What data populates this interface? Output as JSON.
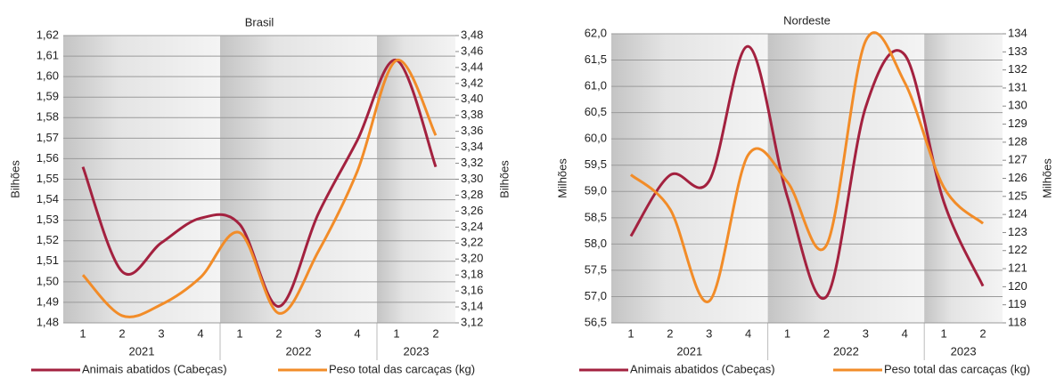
{
  "chart_data": [
    {
      "type": "line",
      "title": "Brasil",
      "categories": [
        "1",
        "2",
        "3",
        "4",
        "1",
        "2",
        "3",
        "4",
        "1",
        "2"
      ],
      "x_groups": [
        {
          "label": "2021",
          "count": 4
        },
        {
          "label": "2022",
          "count": 4
        },
        {
          "label": "2023",
          "count": 2
        }
      ],
      "y_label": "Bilhões",
      "y2_label": "Bilhões",
      "ylim": [
        1.48,
        1.62
      ],
      "yticks": [
        {
          "value": 1.48,
          "label": "1,48"
        },
        {
          "value": 1.49,
          "label": "1,49"
        },
        {
          "value": 1.5,
          "label": "1,50"
        },
        {
          "value": 1.51,
          "label": "1,51"
        },
        {
          "value": 1.52,
          "label": "1,52"
        },
        {
          "value": 1.53,
          "label": "1,53"
        },
        {
          "value": 1.54,
          "label": "1,54"
        },
        {
          "value": 1.55,
          "label": "1,55"
        },
        {
          "value": 1.56,
          "label": "1,56"
        },
        {
          "value": 1.57,
          "label": "1,57"
        },
        {
          "value": 1.58,
          "label": "1,58"
        },
        {
          "value": 1.59,
          "label": "1,59"
        },
        {
          "value": 1.6,
          "label": "1,60"
        },
        {
          "value": 1.61,
          "label": "1,61"
        },
        {
          "value": 1.62,
          "label": "1,62"
        }
      ],
      "y2lim": [
        3.12,
        3.48
      ],
      "y2ticks": [
        {
          "value": 3.12,
          "label": "3,12"
        },
        {
          "value": 3.14,
          "label": "3,14"
        },
        {
          "value": 3.16,
          "label": "3,16"
        },
        {
          "value": 3.18,
          "label": "3,18"
        },
        {
          "value": 3.2,
          "label": "3,20"
        },
        {
          "value": 3.22,
          "label": "3,22"
        },
        {
          "value": 3.24,
          "label": "3,24"
        },
        {
          "value": 3.26,
          "label": "3,26"
        },
        {
          "value": 3.28,
          "label": "3,28"
        },
        {
          "value": 3.3,
          "label": "3,30"
        },
        {
          "value": 3.32,
          "label": "3,32"
        },
        {
          "value": 3.34,
          "label": "3,34"
        },
        {
          "value": 3.36,
          "label": "3,36"
        },
        {
          "value": 3.38,
          "label": "3,38"
        },
        {
          "value": 3.4,
          "label": "3,40"
        },
        {
          "value": 3.42,
          "label": "3,42"
        },
        {
          "value": 3.44,
          "label": "3,44"
        },
        {
          "value": 3.46,
          "label": "3,46"
        },
        {
          "value": 3.48,
          "label": "3,48"
        }
      ],
      "grid": true,
      "series": [
        {
          "name": "Animais abatidos (Cabeças)",
          "color": "#a3213f",
          "values": [
            1.556,
            1.505,
            1.519,
            1.531,
            1.528,
            1.488,
            1.533,
            1.569,
            1.608,
            1.556
          ]
        },
        {
          "name": "Peso total das carcaças (kg)",
          "color": "#f28c28",
          "axis": "y2",
          "values": [
            3.18,
            3.129,
            3.143,
            3.177,
            3.233,
            3.132,
            3.209,
            3.31,
            3.449,
            3.355
          ]
        }
      ]
    },
    {
      "type": "line",
      "title": "Nordeste",
      "categories": [
        "1",
        "2",
        "3",
        "4",
        "1",
        "2",
        "3",
        "4",
        "1",
        "2"
      ],
      "x_groups": [
        {
          "label": "2021",
          "count": 4
        },
        {
          "label": "2022",
          "count": 4
        },
        {
          "label": "2023",
          "count": 2
        }
      ],
      "y_label": "Milhões",
      "y2_label": "Milhões",
      "ylim": [
        56.5,
        62.0
      ],
      "yticks": [
        {
          "value": 56.5,
          "label": "56,5"
        },
        {
          "value": 57.0,
          "label": "57,0"
        },
        {
          "value": 57.5,
          "label": "57,5"
        },
        {
          "value": 58.0,
          "label": "58,0"
        },
        {
          "value": 58.5,
          "label": "58,5"
        },
        {
          "value": 59.0,
          "label": "59,0"
        },
        {
          "value": 59.5,
          "label": "59,5"
        },
        {
          "value": 60.0,
          "label": "60,0"
        },
        {
          "value": 60.5,
          "label": "60,5"
        },
        {
          "value": 61.0,
          "label": "61,0"
        },
        {
          "value": 61.5,
          "label": "61,5"
        },
        {
          "value": 62.0,
          "label": "62,0"
        }
      ],
      "y2lim": [
        118,
        134
      ],
      "y2ticks": [
        118,
        119,
        120,
        121,
        122,
        123,
        124,
        125,
        126,
        127,
        128,
        129,
        130,
        131,
        132,
        133,
        134
      ],
      "grid": true,
      "series": [
        {
          "name": "Animais abatidos (Cabeças)",
          "color": "#a3213f",
          "values": [
            58.15,
            59.31,
            59.2,
            61.76,
            58.9,
            57.0,
            60.6,
            61.6,
            58.8,
            57.2
          ]
        },
        {
          "name": "Peso total das carcaças (kg)",
          "color": "#f28c28",
          "axis": "y2",
          "values": [
            126.2,
            124.3,
            119.2,
            127.3,
            125.8,
            122.3,
            133.6,
            131.3,
            125.5,
            123.5
          ]
        }
      ]
    }
  ]
}
